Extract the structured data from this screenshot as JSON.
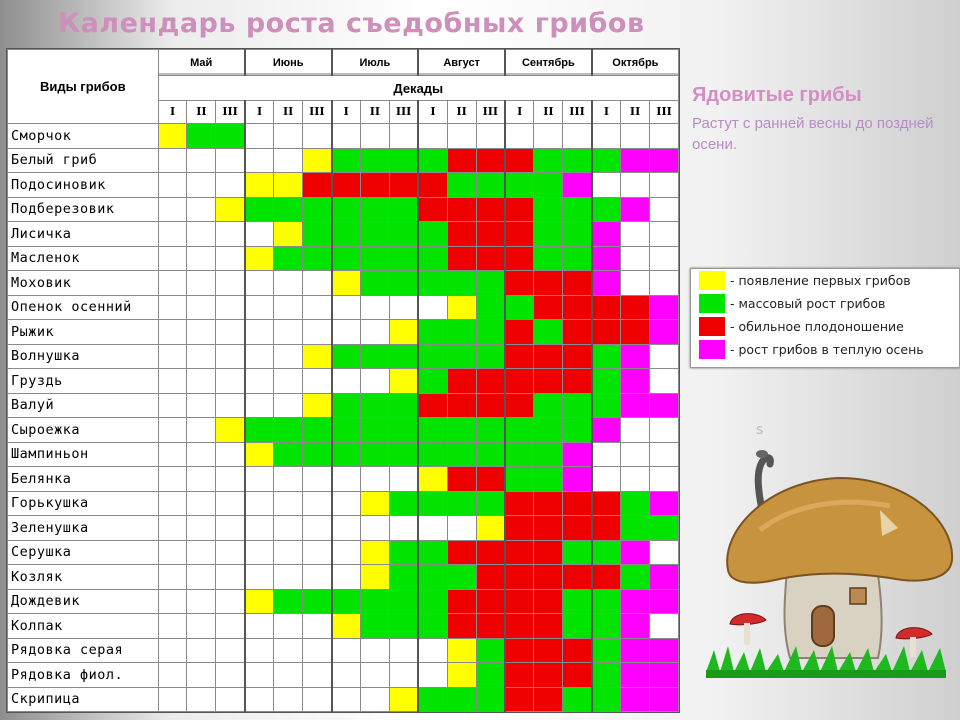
{
  "title": "Календарь роста съедобных грибов",
  "table": {
    "species_header": "Виды грибов",
    "decades_header": "Декады",
    "months": [
      "Май",
      "Июнь",
      "Июль",
      "Август",
      "Сентябрь",
      "Октябрь"
    ],
    "decade_labels": [
      "I",
      "II",
      "III"
    ],
    "rows": [
      {
        "name": "Сморчок",
        "cells": [
          1,
          2,
          2,
          0,
          0,
          0,
          0,
          0,
          0,
          0,
          0,
          0,
          0,
          0,
          0,
          0,
          0,
          0
        ]
      },
      {
        "name": "Белый гриб",
        "cells": [
          0,
          0,
          0,
          0,
          0,
          1,
          2,
          2,
          2,
          2,
          3,
          3,
          3,
          2,
          2,
          2,
          4,
          4
        ]
      },
      {
        "name": "Подосиновик",
        "cells": [
          0,
          0,
          0,
          1,
          1,
          3,
          3,
          3,
          3,
          3,
          2,
          2,
          2,
          2,
          4,
          0,
          0,
          0
        ]
      },
      {
        "name": "Подберезовик",
        "cells": [
          0,
          0,
          1,
          2,
          2,
          2,
          2,
          2,
          2,
          3,
          3,
          3,
          3,
          2,
          2,
          2,
          4,
          0
        ]
      },
      {
        "name": "Лисичка",
        "cells": [
          0,
          0,
          0,
          0,
          1,
          2,
          2,
          2,
          2,
          2,
          3,
          3,
          3,
          2,
          2,
          4,
          0,
          0
        ]
      },
      {
        "name": "Масленок",
        "cells": [
          0,
          0,
          0,
          1,
          2,
          2,
          2,
          2,
          2,
          2,
          3,
          3,
          3,
          2,
          2,
          4,
          0,
          0
        ]
      },
      {
        "name": "Моховик",
        "cells": [
          0,
          0,
          0,
          0,
          0,
          0,
          1,
          2,
          2,
          2,
          2,
          2,
          3,
          3,
          3,
          4,
          0,
          0
        ]
      },
      {
        "name": "Опенок осенний",
        "cells": [
          0,
          0,
          0,
          0,
          0,
          0,
          0,
          0,
          0,
          0,
          1,
          2,
          2,
          3,
          3,
          3,
          3,
          4
        ]
      },
      {
        "name": "Рыжик",
        "cells": [
          0,
          0,
          0,
          0,
          0,
          0,
          0,
          0,
          1,
          2,
          2,
          2,
          3,
          2,
          3,
          3,
          3,
          4
        ]
      },
      {
        "name": "Волнушка",
        "cells": [
          0,
          0,
          0,
          0,
          0,
          1,
          2,
          2,
          2,
          2,
          2,
          2,
          3,
          3,
          3,
          2,
          4,
          0
        ]
      },
      {
        "name": "Груздь",
        "cells": [
          0,
          0,
          0,
          0,
          0,
          0,
          0,
          0,
          1,
          2,
          3,
          3,
          3,
          3,
          3,
          2,
          4,
          0
        ]
      },
      {
        "name": "Валуй",
        "cells": [
          0,
          0,
          0,
          0,
          0,
          1,
          2,
          2,
          2,
          3,
          3,
          3,
          3,
          2,
          2,
          2,
          4,
          4
        ]
      },
      {
        "name": "Сыроежка",
        "cells": [
          0,
          0,
          1,
          2,
          2,
          2,
          2,
          2,
          2,
          2,
          2,
          2,
          2,
          2,
          2,
          4,
          0,
          0
        ]
      },
      {
        "name": "Шампиньон",
        "cells": [
          0,
          0,
          0,
          1,
          2,
          2,
          2,
          2,
          2,
          2,
          2,
          2,
          2,
          2,
          4,
          0,
          0,
          0
        ]
      },
      {
        "name": "Белянка",
        "cells": [
          0,
          0,
          0,
          0,
          0,
          0,
          0,
          0,
          0,
          1,
          3,
          3,
          2,
          2,
          4,
          0,
          0,
          0
        ]
      },
      {
        "name": "Горькушка",
        "cells": [
          0,
          0,
          0,
          0,
          0,
          0,
          0,
          1,
          2,
          2,
          2,
          2,
          3,
          3,
          3,
          3,
          2,
          4
        ]
      },
      {
        "name": "Зеленушка",
        "cells": [
          0,
          0,
          0,
          0,
          0,
          0,
          0,
          0,
          0,
          0,
          0,
          1,
          3,
          3,
          3,
          3,
          2,
          2
        ]
      },
      {
        "name": "Серушка",
        "cells": [
          0,
          0,
          0,
          0,
          0,
          0,
          0,
          1,
          2,
          2,
          3,
          3,
          3,
          3,
          2,
          2,
          4,
          0
        ]
      },
      {
        "name": "Козляк",
        "cells": [
          0,
          0,
          0,
          0,
          0,
          0,
          0,
          1,
          2,
          2,
          2,
          3,
          3,
          3,
          3,
          3,
          2,
          4
        ]
      },
      {
        "name": "Дождевик",
        "cells": [
          0,
          0,
          0,
          1,
          2,
          2,
          2,
          2,
          2,
          2,
          3,
          3,
          3,
          3,
          2,
          2,
          4,
          4
        ]
      },
      {
        "name": "Колпак",
        "cells": [
          0,
          0,
          0,
          0,
          0,
          0,
          1,
          2,
          2,
          2,
          3,
          3,
          3,
          3,
          2,
          2,
          4,
          0
        ]
      },
      {
        "name": "Рядовка серая",
        "cells": [
          0,
          0,
          0,
          0,
          0,
          0,
          0,
          0,
          0,
          0,
          1,
          2,
          3,
          3,
          3,
          2,
          4,
          4
        ]
      },
      {
        "name": "Рядовка фиол.",
        "cells": [
          0,
          0,
          0,
          0,
          0,
          0,
          0,
          0,
          0,
          0,
          1,
          2,
          3,
          3,
          3,
          2,
          4,
          4
        ]
      },
      {
        "name": "Скрипица",
        "cells": [
          0,
          0,
          0,
          0,
          0,
          0,
          0,
          0,
          1,
          2,
          2,
          2,
          3,
          3,
          2,
          2,
          4,
          4
        ]
      }
    ]
  },
  "poison": {
    "title": "Ядовитые грибы",
    "text": "Растут  с ранней весны до поздней осени."
  },
  "legend": [
    {
      "color": "#ffff00",
      "label": "- появление первых грибов"
    },
    {
      "color": "#00e400",
      "label": "- массовый рост грибов"
    },
    {
      "color": "#ee0000",
      "label": "- обильное плодоношение"
    },
    {
      "color": "#ff00ff",
      "label": "- рост грибов в теплую осень"
    }
  ],
  "mushroom_icon": "mushroom-house-icon"
}
